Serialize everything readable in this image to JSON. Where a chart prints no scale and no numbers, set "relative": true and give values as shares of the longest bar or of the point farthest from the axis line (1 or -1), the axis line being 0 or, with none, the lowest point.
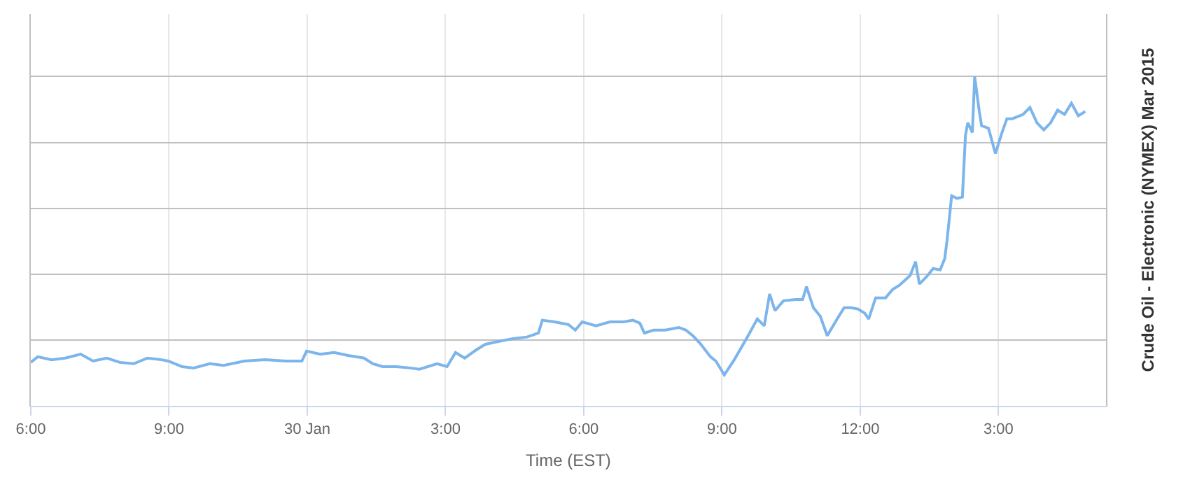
{
  "chart_data": {
    "type": "line",
    "relative": true,
    "xlabel": "Time (EST)",
    "ylabel": "Crude Oil - Electronic (NYMEX) Mar 2015",
    "xlim": [
      "2015-01-29T18:00",
      "2015-01-30T17:20"
    ],
    "xticks": [
      {
        "value": "2015-01-29T18:00",
        "label": "6:00"
      },
      {
        "value": "2015-01-29T21:00",
        "label": "9:00"
      },
      {
        "value": "2015-01-30T00:00",
        "label": "30 Jan"
      },
      {
        "value": "2015-01-30T03:00",
        "label": "3:00"
      },
      {
        "value": "2015-01-30T06:00",
        "label": "6:00"
      },
      {
        "value": "2015-01-30T09:00",
        "label": "9:00"
      },
      {
        "value": "2015-01-30T12:00",
        "label": "12:00"
      },
      {
        "value": "2015-01-30T15:00",
        "label": "3:00"
      }
    ],
    "grid": true,
    "marker": "none",
    "line_style": "solid",
    "series": [
      {
        "color": "#7cb5ec",
        "x": [
          "2015-01-29T18:00",
          "2015-01-29T18:09",
          "2015-01-29T18:27",
          "2015-01-29T18:45",
          "2015-01-29T19:05",
          "2015-01-29T19:21",
          "2015-01-29T19:39",
          "2015-01-29T19:56",
          "2015-01-29T20:14",
          "2015-01-29T20:32",
          "2015-01-29T20:50",
          "2015-01-29T20:59",
          "2015-01-29T21:17",
          "2015-01-29T21:32",
          "2015-01-29T21:53",
          "2015-01-29T22:11",
          "2015-01-29T22:38",
          "2015-01-29T23:05",
          "2015-01-29T23:32",
          "2015-01-29T23:53",
          "2015-01-29T23:59",
          "2015-01-30T00:17",
          "2015-01-30T00:35",
          "2015-01-30T00:53",
          "2015-01-30T01:14",
          "2015-01-30T01:25",
          "2015-01-30T01:38",
          "2015-01-30T01:56",
          "2015-01-30T02:14",
          "2015-01-30T02:26",
          "2015-01-30T02:49",
          "2015-01-30T03:02",
          "2015-01-30T03:13",
          "2015-01-30T03:25",
          "2015-01-30T03:40",
          "2015-01-30T03:52",
          "2015-01-30T04:10",
          "2015-01-30T04:28",
          "2015-01-30T04:46",
          "2015-01-30T05:01",
          "2015-01-30T05:06",
          "2015-01-30T05:22",
          "2015-01-30T05:40",
          "2015-01-30T05:49",
          "2015-01-30T05:58",
          "2015-01-30T06:16",
          "2015-01-30T06:34",
          "2015-01-30T06:52",
          "2015-01-30T07:04",
          "2015-01-30T07:13",
          "2015-01-30T07:19",
          "2015-01-30T07:31",
          "2015-01-30T07:46",
          "2015-01-30T08:04",
          "2015-01-30T08:13",
          "2015-01-30T08:22",
          "2015-01-30T08:31",
          "2015-01-30T08:45",
          "2015-01-30T08:52",
          "2015-01-30T09:03",
          "2015-01-30T09:16",
          "2015-01-30T09:34",
          "2015-01-30T09:46",
          "2015-01-30T09:55",
          "2015-01-30T10:02",
          "2015-01-30T10:09",
          "2015-01-30T10:20",
          "2015-01-30T10:36",
          "2015-01-30T10:45",
          "2015-01-30T10:50",
          "2015-01-30T10:59",
          "2015-01-30T11:08",
          "2015-01-30T11:17",
          "2015-01-30T11:30",
          "2015-01-30T11:39",
          "2015-01-30T11:48",
          "2015-01-30T11:57",
          "2015-01-30T12:06",
          "2015-01-30T12:11",
          "2015-01-30T12:20",
          "2015-01-30T12:33",
          "2015-01-30T12:42",
          "2015-01-30T12:51",
          "2015-01-30T12:59",
          "2015-01-30T13:05",
          "2015-01-30T13:12",
          "2015-01-30T13:17",
          "2015-01-30T13:26",
          "2015-01-30T13:35",
          "2015-01-30T13:44",
          "2015-01-30T13:50",
          "2015-01-30T13:53",
          "2015-01-30T13:59",
          "2015-01-30T14:06",
          "2015-01-30T14:13",
          "2015-01-30T14:17",
          "2015-01-30T14:20",
          "2015-01-30T14:26",
          "2015-01-30T14:29",
          "2015-01-30T14:35",
          "2015-01-30T14:38",
          "2015-01-30T14:47",
          "2015-01-30T14:56",
          "2015-01-30T15:04",
          "2015-01-30T15:11",
          "2015-01-30T15:18",
          "2015-01-30T15:32",
          "2015-01-30T15:41",
          "2015-01-30T15:50",
          "2015-01-30T15:59",
          "2015-01-30T16:08",
          "2015-01-30T16:17",
          "2015-01-30T16:26",
          "2015-01-30T16:35",
          "2015-01-30T16:44",
          "2015-01-30T16:53"
        ],
        "values": [
          0.132,
          0.149,
          0.14,
          0.145,
          0.157,
          0.136,
          0.145,
          0.132,
          0.128,
          0.145,
          0.14,
          0.136,
          0.119,
          0.115,
          0.128,
          0.123,
          0.136,
          0.14,
          0.136,
          0.136,
          0.166,
          0.157,
          0.162,
          0.153,
          0.145,
          0.128,
          0.119,
          0.119,
          0.115,
          0.111,
          0.128,
          0.119,
          0.162,
          0.145,
          0.17,
          0.187,
          0.196,
          0.204,
          0.209,
          0.221,
          0.26,
          0.255,
          0.247,
          0.23,
          0.255,
          0.243,
          0.255,
          0.255,
          0.26,
          0.251,
          0.221,
          0.23,
          0.23,
          0.238,
          0.23,
          0.213,
          0.191,
          0.149,
          0.136,
          0.094,
          0.14,
          0.213,
          0.264,
          0.243,
          0.34,
          0.289,
          0.319,
          0.323,
          0.323,
          0.362,
          0.298,
          0.272,
          0.213,
          0.264,
          0.298,
          0.298,
          0.294,
          0.281,
          0.264,
          0.328,
          0.328,
          0.353,
          0.366,
          0.383,
          0.396,
          0.438,
          0.37,
          0.391,
          0.417,
          0.413,
          0.447,
          0.502,
          0.638,
          0.63,
          0.634,
          0.821,
          0.86,
          0.83,
          1,
          0.894,
          0.851,
          0.843,
          0.766,
          0.826,
          0.872,
          0.872,
          0.885,
          0.906,
          0.86,
          0.838,
          0.86,
          0.898,
          0.885,
          0.919,
          0.881,
          0.894
        ]
      }
    ]
  }
}
